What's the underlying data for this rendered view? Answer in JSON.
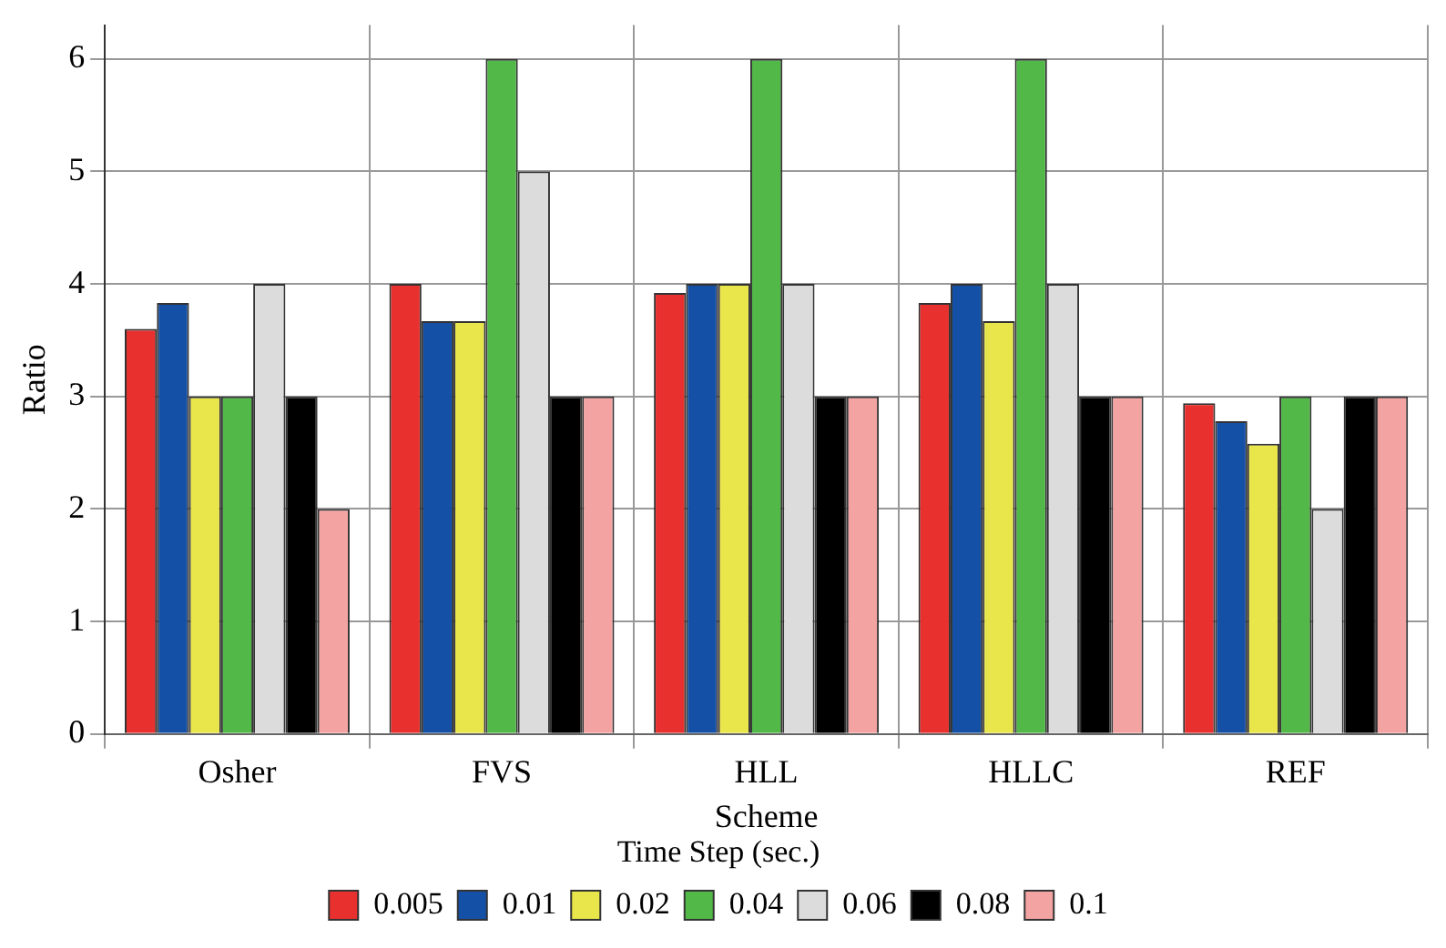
{
  "chart_data": {
    "type": "bar",
    "xlabel": "Scheme",
    "ylabel": "Ratio",
    "legend_title": "Time Step (sec.)",
    "categories": [
      "Osher",
      "FVS",
      "HLL",
      "HLLC",
      "REF"
    ],
    "series": [
      {
        "name": "0.005",
        "color": "#e8302e",
        "values": [
          3.6,
          4,
          3.92,
          3.83,
          2.94
        ]
      },
      {
        "name": "0.01",
        "color": "#1451a6",
        "values": [
          3.83,
          3.67,
          4,
          4,
          2.78
        ]
      },
      {
        "name": "0.02",
        "color": "#e8e64a",
        "values": [
          3,
          3.67,
          4,
          3.67,
          2.58
        ]
      },
      {
        "name": "0.04",
        "color": "#52b848",
        "values": [
          3,
          6,
          6,
          6,
          3
        ]
      },
      {
        "name": "0.06",
        "color": "#dcdcdc",
        "values": [
          4,
          5,
          4,
          4,
          2
        ]
      },
      {
        "name": "0.08",
        "color": "#000000",
        "values": [
          3,
          3,
          3,
          3,
          3
        ]
      },
      {
        "name": "0.1",
        "color": "#f4a3a3",
        "values": [
          2,
          3,
          3,
          3,
          3
        ]
      }
    ],
    "ylim": [
      0,
      6.3
    ],
    "yticks": [
      0,
      1,
      2,
      3,
      4,
      5,
      6
    ],
    "grid": true,
    "legend": "bottom"
  }
}
